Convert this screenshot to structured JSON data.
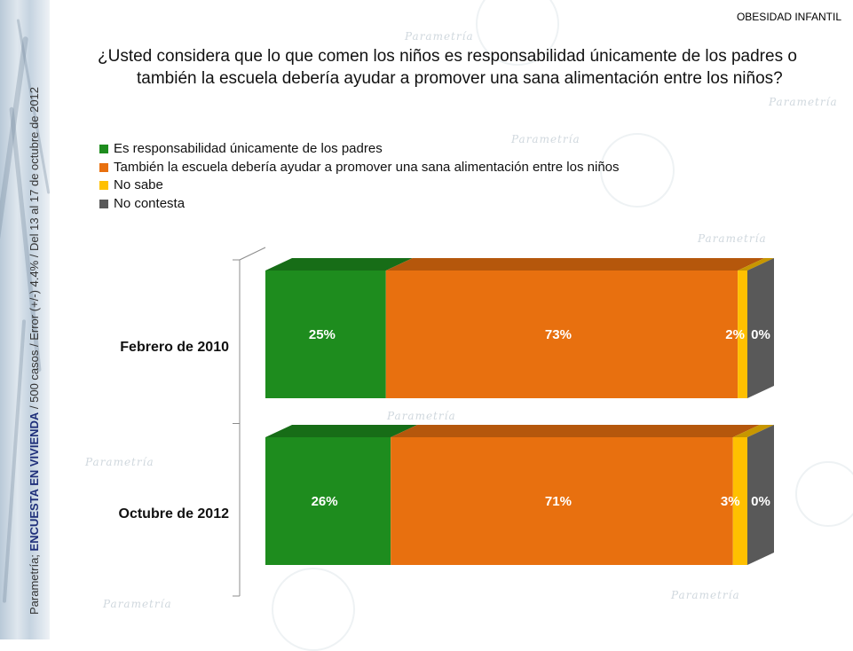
{
  "header": {
    "tag": "OBESIDAD INFANTIL",
    "question_line1": "¿Usted considera que lo que comen los niños es responsabilidad únicamente de los padres o",
    "question_line2": "también la escuela debería ayudar a promover una sana alimentación entre los niños?"
  },
  "side_note": {
    "prefix": "Parametría; ",
    "survey": "ENCUESTA EN VIVIENDA",
    "details": " / 500 casos / Error (+/-) 4.4% / Del 13 al 17 de octubre de 2012"
  },
  "watermark_text": "Parametría",
  "colors": {
    "padres": "#1e8c1e",
    "escuela": "#e8700f",
    "no_sabe": "#ffc000",
    "no_contesta": "#595959"
  },
  "chart_data": {
    "type": "bar",
    "orientation": "horizontal",
    "stacked": true,
    "percent_stacked": true,
    "categories": [
      "Febrero de 2010",
      "Octubre de 2012"
    ],
    "series": [
      {
        "name": "Es responsabilidad únicamente de los padres",
        "key": "padres",
        "values": [
          25,
          26
        ],
        "labels": [
          "25%",
          "26%"
        ]
      },
      {
        "name": "También la escuela debería ayudar a promover una sana alimentación entre los niños",
        "key": "escuela",
        "values": [
          73,
          71
        ],
        "labels": [
          "73%",
          "71%"
        ]
      },
      {
        "name": "No sabe",
        "key": "no_sabe",
        "values": [
          2,
          3
        ],
        "labels": [
          "2%",
          "3%"
        ]
      },
      {
        "name": "No contesta",
        "key": "no_contesta",
        "values": [
          0,
          0
        ],
        "labels": [
          "0%",
          "0%"
        ]
      }
    ],
    "legend_position": "top-left",
    "grid": false
  }
}
